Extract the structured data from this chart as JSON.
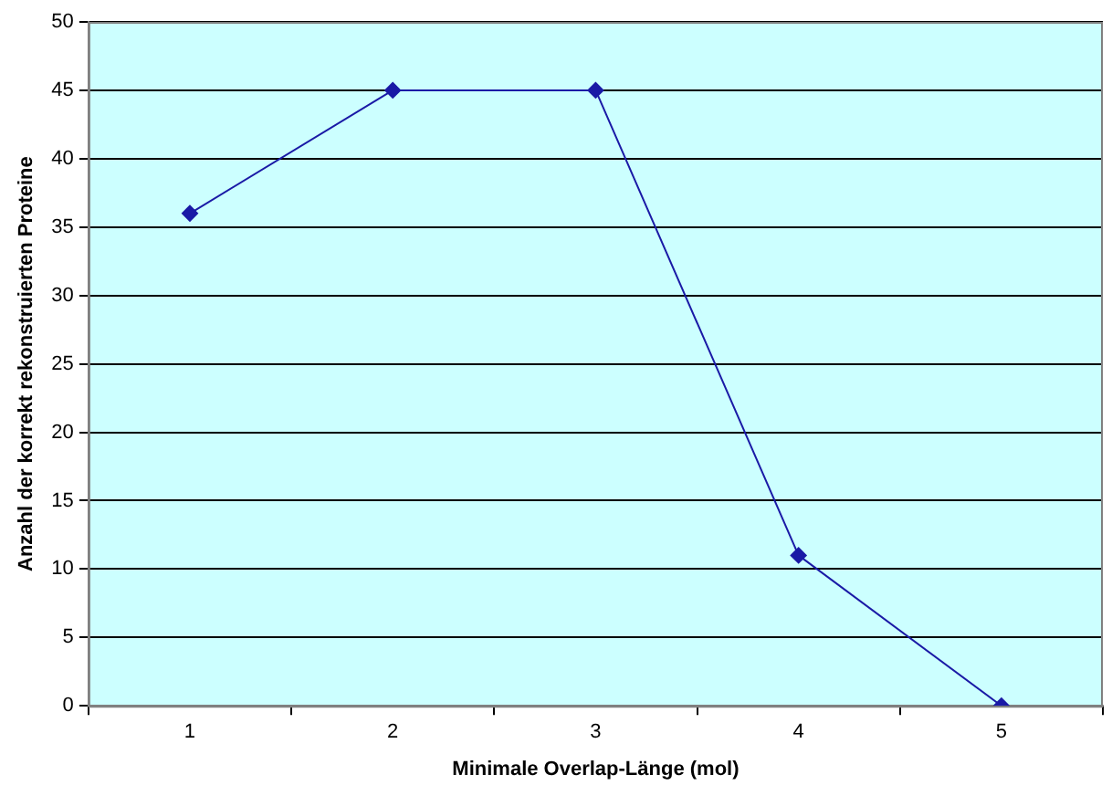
{
  "chart_data": {
    "type": "line",
    "xlabel": "Minimale Overlap-Länge (mol)",
    "ylabel": "Anzahl der korrekt rekonstruierten Proteine",
    "categories": [
      "1",
      "2",
      "3",
      "4",
      "5"
    ],
    "series": [
      {
        "color": "#1a1aa6",
        "values": [
          36,
          45,
          45,
          11,
          0
        ]
      }
    ],
    "ylim": [
      0,
      50
    ],
    "yticks": [
      0,
      5,
      10,
      15,
      20,
      25,
      30,
      35,
      40,
      45,
      50
    ],
    "grid": "y",
    "legend": false,
    "marker": "diamond",
    "line_style": "solid"
  }
}
